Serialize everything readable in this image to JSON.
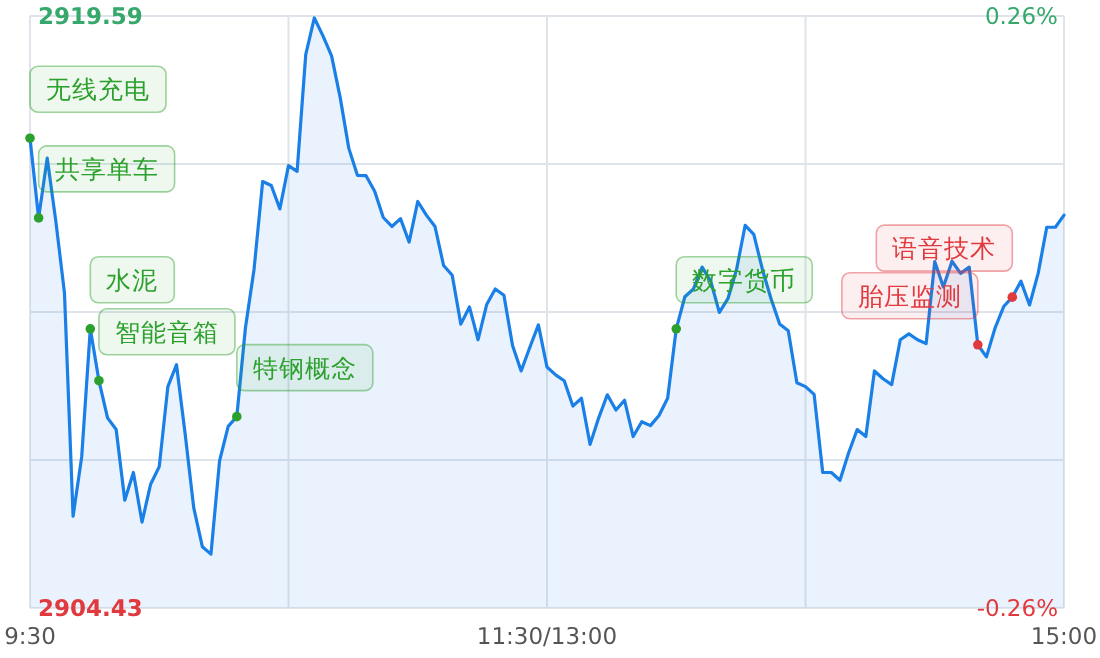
{
  "chart_data": {
    "type": "area",
    "categories": [
      "9:30",
      null,
      null,
      null,
      null,
      null,
      null,
      null,
      null,
      null,
      null,
      null,
      null,
      null,
      null,
      null,
      null,
      null,
      null,
      null,
      null,
      null,
      null,
      null,
      null,
      null,
      null,
      null,
      null,
      null,
      null,
      null,
      null,
      null,
      null,
      null,
      null,
      null,
      null,
      null,
      null,
      null,
      null,
      null,
      null,
      null,
      null,
      null,
      null,
      null,
      null,
      null,
      null,
      null,
      null,
      null,
      null,
      null,
      null,
      null,
      "11:30/13:00",
      null,
      null,
      null,
      null,
      null,
      null,
      null,
      null,
      null,
      null,
      null,
      null,
      null,
      null,
      null,
      null,
      null,
      null,
      null,
      null,
      null,
      null,
      null,
      null,
      null,
      null,
      null,
      null,
      null,
      null,
      null,
      null,
      null,
      null,
      null,
      null,
      null,
      null,
      null,
      null,
      null,
      null,
      null,
      null,
      null,
      null,
      null,
      null,
      null,
      null,
      null,
      null,
      null,
      null,
      null,
      null,
      null,
      null,
      null,
      "15:00"
    ],
    "ylim": [
      2904.43,
      2919.59
    ],
    "yticks": [
      2904.43,
      {
        "value": 2908.22,
        "label": null
      },
      {
        "value": 2912.01,
        "label": null
      },
      {
        "value": 2915.8,
        "label": null
      },
      2919.59
    ],
    "y2lim": [
      -0.26,
      0.26
    ],
    "y2ticks": [
      {
        "value": 0.26,
        "label": "0.26%"
      },
      {
        "value": -0.26,
        "label": "-0.26%"
      }
    ],
    "grid": true,
    "series": [
      {
        "color": "#1a7fe6",
        "marker": "none",
        "values": [
          2916.46,
          2914.42,
          2915.95,
          2914.33,
          2912.5,
          2906.78,
          2908.3,
          2911.58,
          2910.25,
          2909.3,
          2909.0,
          2907.19,
          2907.9,
          2906.63,
          2907.6,
          2908.05,
          2910.1,
          2910.66,
          2908.9,
          2907.0,
          2906.0,
          2905.81,
          2908.2,
          2909.08,
          2909.33,
          2911.6,
          2913.1,
          2915.35,
          2915.25,
          2914.65,
          2915.76,
          2915.61,
          2918.6,
          2919.54,
          2919.08,
          2918.57,
          2917.5,
          2916.2,
          2915.51,
          2915.5,
          2915.1,
          2914.43,
          2914.2,
          2914.4,
          2913.8,
          2914.84,
          2914.49,
          2914.2,
          2913.2,
          2912.95,
          2911.7,
          2912.14,
          2911.3,
          2912.2,
          2912.6,
          2912.44,
          2911.15,
          2910.5,
          2911.1,
          2911.68,
          2910.6,
          2910.4,
          2910.25,
          2909.6,
          2909.8,
          2908.62,
          2909.3,
          2909.89,
          2909.5,
          2909.75,
          2908.82,
          2909.2,
          2909.1,
          2909.36,
          2909.8,
          2911.58,
          2912.4,
          2912.6,
          2913.16,
          2912.8,
          2912.0,
          2912.35,
          2913.1,
          2914.23,
          2914.0,
          2913.1,
          2912.35,
          2911.7,
          2911.53,
          2910.2,
          2910.1,
          2909.9,
          2907.9,
          2907.9,
          2907.7,
          2908.4,
          2909.0,
          2908.82,
          2910.5,
          2910.3,
          2910.15,
          2911.3,
          2911.45,
          2911.3,
          2911.2,
          2913.3,
          2912.65,
          2913.31,
          2913.0,
          2913.16,
          2911.17,
          2910.86,
          2911.6,
          2912.15,
          2912.39,
          2912.8,
          2912.19,
          2913.0,
          2914.18,
          2914.18,
          2914.49
        ]
      },
      {
        "type": "scatter",
        "color": "#2ca02c",
        "marker": "circle",
        "values": [
          2916.46,
          2914.42,
          null,
          null,
          null,
          null,
          null,
          2911.58,
          2910.25,
          null,
          null,
          null,
          null,
          null,
          null,
          null,
          null,
          null,
          null,
          null,
          null,
          null,
          null,
          null,
          2909.33,
          null,
          null,
          null,
          null,
          null,
          null,
          null,
          null,
          null,
          null,
          null,
          null,
          null,
          null,
          null,
          null,
          null,
          null,
          null,
          null,
          null,
          null,
          null,
          null,
          null,
          null,
          null,
          null,
          null,
          null,
          null,
          null,
          null,
          null,
          null,
          null,
          null,
          null,
          null,
          null,
          null,
          null,
          null,
          null,
          null,
          null,
          null,
          null,
          null,
          null,
          2911.58,
          null,
          null,
          null,
          null,
          null,
          null,
          null,
          null,
          null,
          null,
          null,
          null,
          null,
          null,
          null,
          null,
          null,
          null,
          null,
          null,
          null,
          null,
          null,
          null,
          null,
          null,
          null,
          null,
          null,
          null,
          null,
          null,
          null,
          null,
          null,
          null,
          null,
          null,
          null,
          null,
          null,
          null,
          null,
          null,
          null
        ]
      },
      {
        "type": "scatter",
        "color": "#e0393e",
        "marker": "circle",
        "values": [
          null,
          null,
          null,
          null,
          null,
          null,
          null,
          null,
          null,
          null,
          null,
          null,
          null,
          null,
          null,
          null,
          null,
          null,
          null,
          null,
          null,
          null,
          null,
          null,
          null,
          null,
          null,
          null,
          null,
          null,
          null,
          null,
          null,
          null,
          null,
          null,
          null,
          null,
          null,
          null,
          null,
          null,
          null,
          null,
          null,
          null,
          null,
          null,
          null,
          null,
          null,
          null,
          null,
          null,
          null,
          null,
          null,
          null,
          null,
          null,
          null,
          null,
          null,
          null,
          null,
          null,
          null,
          null,
          null,
          null,
          null,
          null,
          null,
          null,
          null,
          null,
          null,
          null,
          null,
          null,
          null,
          null,
          null,
          null,
          null,
          null,
          null,
          null,
          null,
          null,
          null,
          null,
          null,
          null,
          null,
          null,
          null,
          null,
          null,
          null,
          null,
          null,
          null,
          null,
          null,
          null,
          null,
          null,
          null,
          null,
          2911.17,
          null,
          null,
          null,
          2912.39,
          null,
          null,
          null,
          null,
          null,
          null
        ]
      }
    ],
    "annotations": [
      "无线充电",
      "共享单车",
      "水泥",
      "智能音箱",
      "特钢概念",
      "数字货币",
      "胎压监测",
      "语音技术"
    ]
  }
}
